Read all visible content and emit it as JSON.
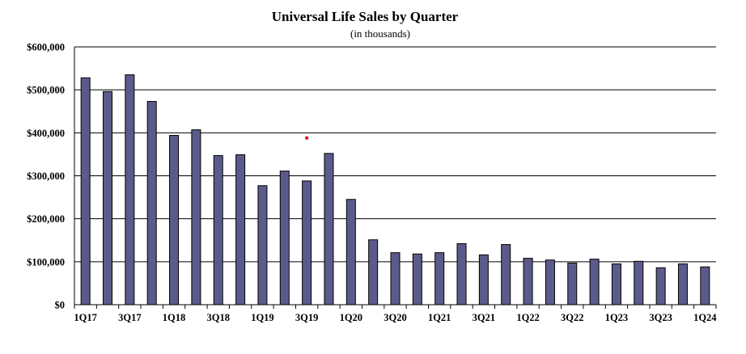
{
  "chart_data": {
    "type": "bar",
    "title": "Universal Life Sales by Quarter",
    "subtitle": "(in thousands)",
    "xlabel": "",
    "ylabel": "",
    "ylim": [
      0,
      600000
    ],
    "grid": true,
    "legend": "none",
    "bar_color": "#5b5b8b",
    "marker_color": "#e0202a",
    "yticks": [
      "$0",
      "$100,000",
      "$200,000",
      "$300,000",
      "$400,000",
      "$500,000",
      "$600,000"
    ],
    "ytick_values": [
      0,
      100000,
      200000,
      300000,
      400000,
      500000,
      600000
    ],
    "categories": [
      "1Q17",
      "2Q17",
      "3Q17",
      "4Q17",
      "1Q18",
      "2Q18",
      "3Q18",
      "4Q18",
      "1Q19",
      "2Q19",
      "3Q19",
      "4Q19",
      "1Q20",
      "2Q20",
      "3Q20",
      "4Q20",
      "1Q21",
      "2Q21",
      "3Q21",
      "4Q21",
      "1Q22",
      "2Q22",
      "3Q22",
      "4Q22",
      "1Q23",
      "2Q23",
      "3Q23",
      "4Q23",
      "1Q24"
    ],
    "xticks": [
      "1Q17",
      "3Q17",
      "1Q18",
      "3Q18",
      "1Q19",
      "3Q19",
      "1Q20",
      "3Q20",
      "1Q21",
      "3Q21",
      "1Q22",
      "3Q22",
      "1Q23",
      "3Q23",
      "1Q24"
    ],
    "values": [
      528000,
      496000,
      535000,
      473000,
      394000,
      407000,
      347000,
      349000,
      277000,
      311000,
      288000,
      352000,
      245000,
      151000,
      121000,
      118000,
      121000,
      142000,
      116000,
      140000,
      108000,
      104000,
      97000,
      106000,
      95000,
      101000,
      86000,
      95000,
      88000
    ],
    "marker": {
      "category": "3Q19",
      "value": 388000
    }
  }
}
